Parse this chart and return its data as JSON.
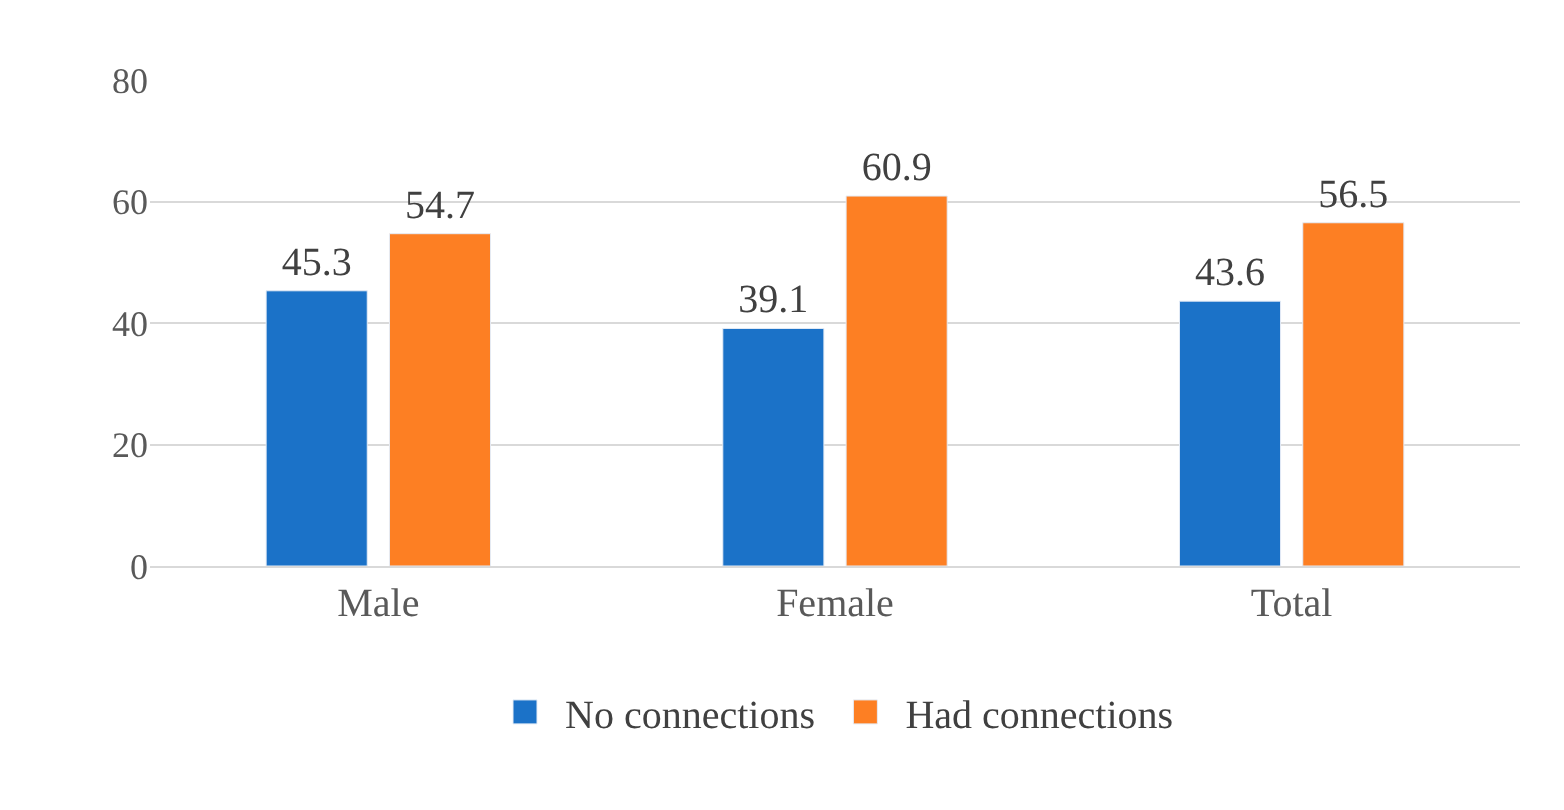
{
  "chart_data": {
    "type": "bar",
    "categories": [
      "Male",
      "Female",
      "Total"
    ],
    "series": [
      {
        "name": "No connections",
        "color": "#1b72c8",
        "values": [
          45.3,
          39.1,
          43.6
        ]
      },
      {
        "name": "Had connections",
        "color": "#fd7f23",
        "values": [
          54.7,
          60.9,
          56.5
        ]
      }
    ],
    "ylim": [
      0,
      80
    ],
    "yticks": [
      0,
      20,
      40,
      60,
      80
    ],
    "grid": "y",
    "legend": "bottom",
    "data_labels": true
  }
}
